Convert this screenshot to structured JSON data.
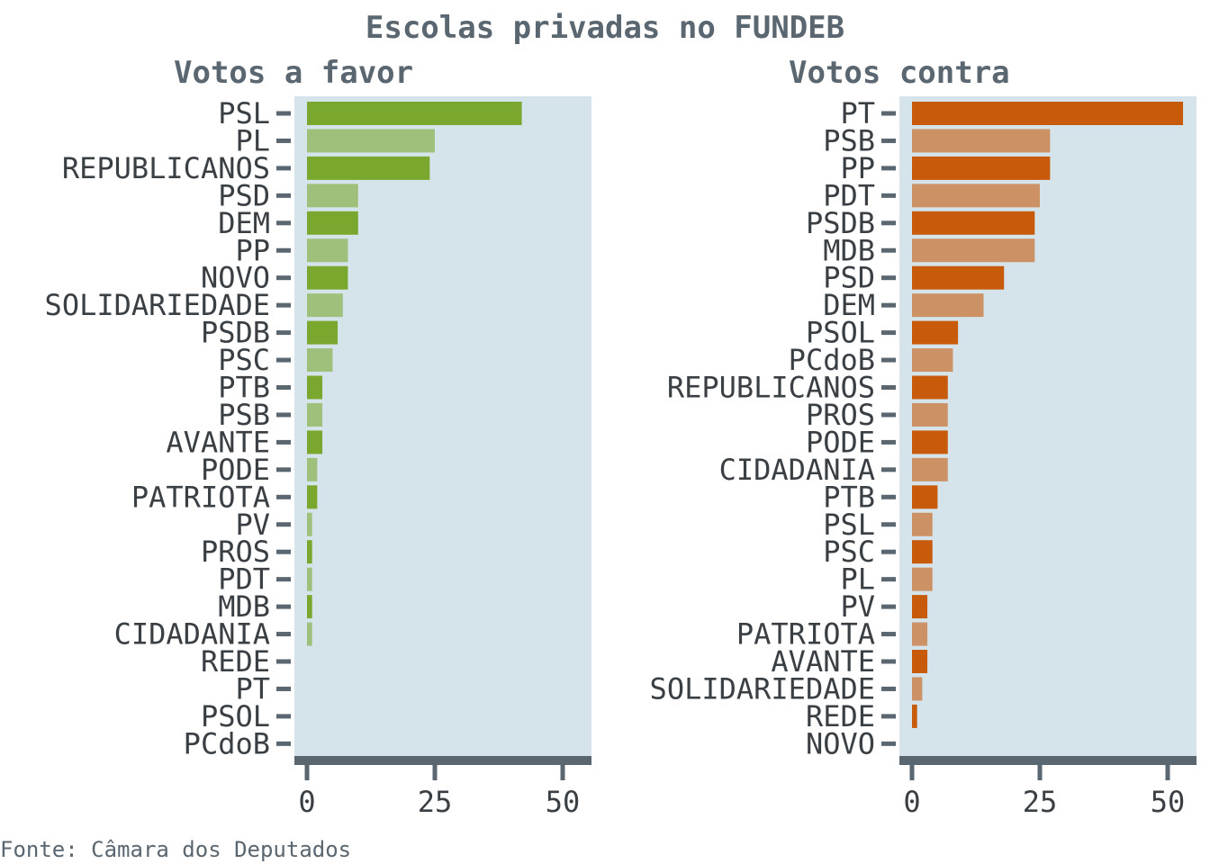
{
  "title": "Escolas privadas no FUNDEB",
  "source": "Fonte: Câmara dos Deputados",
  "colors": {
    "panel_bg": "#d4e4ea",
    "axis": "#5a6670",
    "text": "#3a3f44",
    "favor_dark": "#7aa82e",
    "favor_light": "#9fc07a",
    "contra_dark": "#c85a0c",
    "contra_light": "#cc9266"
  },
  "chart_data": [
    {
      "type": "bar",
      "orientation": "horizontal",
      "title": "Votos a favor",
      "xlim": [
        0,
        55
      ],
      "xticks": [
        0,
        25,
        50
      ],
      "categories": [
        "PSL",
        "PL",
        "REPUBLICANOS",
        "PSD",
        "DEM",
        "PP",
        "NOVO",
        "SOLIDARIEDADE",
        "PSDB",
        "PSC",
        "PTB",
        "PSB",
        "AVANTE",
        "PODE",
        "PATRIOTA",
        "PV",
        "PROS",
        "PDT",
        "MDB",
        "CIDADANIA",
        "REDE",
        "PT",
        "PSOL",
        "PCdoB"
      ],
      "values": [
        42,
        25,
        24,
        10,
        10,
        8,
        8,
        7,
        6,
        5,
        3,
        3,
        3,
        2,
        2,
        1,
        1,
        1,
        1,
        1,
        0,
        0,
        0,
        0
      ]
    },
    {
      "type": "bar",
      "orientation": "horizontal",
      "title": "Votos contra",
      "xlim": [
        0,
        55
      ],
      "xticks": [
        0,
        25,
        50
      ],
      "categories": [
        "PT",
        "PSB",
        "PP",
        "PDT",
        "PSDB",
        "MDB",
        "PSD",
        "DEM",
        "PSOL",
        "PCdoB",
        "REPUBLICANOS",
        "PROS",
        "PODE",
        "CIDADANIA",
        "PTB",
        "PSL",
        "PSC",
        "PL",
        "PV",
        "PATRIOTA",
        "AVANTE",
        "SOLIDARIEDADE",
        "REDE",
        "NOVO"
      ],
      "values": [
        53,
        27,
        27,
        25,
        24,
        24,
        18,
        14,
        9,
        8,
        7,
        7,
        7,
        7,
        5,
        4,
        4,
        4,
        3,
        3,
        3,
        2,
        1,
        0
      ]
    }
  ]
}
